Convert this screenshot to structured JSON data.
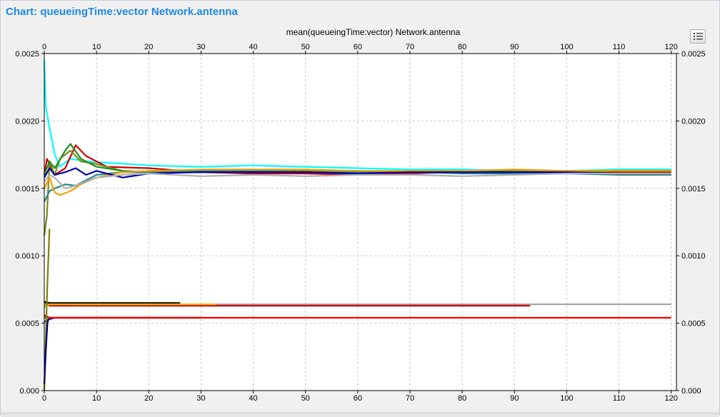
{
  "window": {
    "title": "Chart: queueingTime:vector Network.antenna"
  },
  "toolbar": {
    "legend_button_icon": "list-icon"
  },
  "colors": {
    "title_blue": "#1e88e5",
    "grid": "#c8c8c8",
    "plot_background": "#ffffff",
    "panel_background": "#f0f0f0"
  },
  "chart_data": {
    "type": "line",
    "title": "mean(queueingTime:vector) Network.antenna",
    "xlabel": "",
    "ylabel": "",
    "xlim": [
      0,
      121
    ],
    "ylim": [
      0,
      0.0025
    ],
    "x_ticks": [
      "0",
      "10",
      "20",
      "30",
      "40",
      "50",
      "60",
      "70",
      "80",
      "90",
      "100",
      "110",
      "120"
    ],
    "y_ticks": [
      "0.000",
      "0.0005",
      "0.0010",
      "0.0015",
      "0.0020",
      "0.0025"
    ],
    "x_axis_top": true,
    "y_axis_right": true,
    "grid": true,
    "legend": "none",
    "series": [
      {
        "color": "#00ffff",
        "x": [
          0,
          0.3,
          1,
          2,
          3,
          5,
          8,
          12,
          20,
          30,
          40,
          50,
          60,
          70,
          80,
          90,
          100,
          110,
          120
        ],
        "y": [
          0.00245,
          0.0021,
          0.00195,
          0.00175,
          0.00166,
          0.00172,
          0.0017,
          0.00169,
          0.00167,
          0.00166,
          0.00167,
          0.00166,
          0.00165,
          0.00164,
          0.00164,
          0.00163,
          0.00163,
          0.00164,
          0.00164
        ]
      },
      {
        "color": "#cc0000",
        "x": [
          0,
          0.5,
          1,
          2,
          4,
          6,
          8,
          12,
          20,
          30,
          40,
          50,
          60,
          70,
          80,
          90,
          100,
          110,
          120
        ],
        "y": [
          0.0016,
          0.00172,
          0.00168,
          0.0016,
          0.00165,
          0.00182,
          0.00174,
          0.00166,
          0.00165,
          0.00162,
          0.00161,
          0.00161,
          0.0016,
          0.00161,
          0.00162,
          0.00162,
          0.00162,
          0.00162,
          0.00162
        ]
      },
      {
        "color": "#7a8a1a",
        "x": [
          0,
          0.5,
          1,
          2,
          3,
          5,
          7,
          10,
          15,
          20,
          30,
          40,
          50,
          60,
          70,
          80,
          90,
          100,
          110,
          120
        ],
        "y": [
          0.00115,
          0.0013,
          0.0017,
          0.0016,
          0.00172,
          0.00178,
          0.0017,
          0.00168,
          0.00163,
          0.00162,
          0.00162,
          0.00163,
          0.00163,
          0.00163,
          0.00162,
          0.00162,
          0.00163,
          0.00163,
          0.00163,
          0.00163
        ]
      },
      {
        "color": "#1f8f1f",
        "x": [
          0,
          1,
          2,
          4,
          5,
          7,
          10,
          15,
          20,
          30,
          40,
          50,
          60,
          70,
          80,
          90,
          100,
          110,
          120
        ],
        "y": [
          0.0016,
          0.0017,
          0.00165,
          0.00178,
          0.00183,
          0.00172,
          0.00166,
          0.00163,
          0.00162,
          0.00162,
          0.00163,
          0.00162,
          0.00162,
          0.00163,
          0.00163,
          0.00162,
          0.00162,
          0.00163,
          0.00163
        ]
      },
      {
        "color": "#2a8a8a",
        "x": [
          0,
          1,
          2,
          4,
          6,
          8,
          10,
          15,
          20,
          30,
          40,
          50,
          60,
          70,
          80,
          90,
          100,
          110,
          120
        ],
        "y": [
          0.0014,
          0.00148,
          0.0015,
          0.00153,
          0.00152,
          0.00156,
          0.0016,
          0.00162,
          0.00162,
          0.00163,
          0.00163,
          0.00162,
          0.00162,
          0.00162,
          0.00161,
          0.00161,
          0.00161,
          0.0016,
          0.0016
        ]
      },
      {
        "color": "#f0a000",
        "x": [
          0,
          1,
          2,
          3,
          5,
          7,
          10,
          15,
          20,
          30,
          40,
          50,
          60,
          70,
          80,
          90,
          100,
          110,
          120
        ],
        "y": [
          0.0015,
          0.00158,
          0.00147,
          0.00145,
          0.00148,
          0.00153,
          0.00158,
          0.00162,
          0.00163,
          0.00164,
          0.00164,
          0.00164,
          0.00163,
          0.00163,
          0.00163,
          0.00164,
          0.00163,
          0.00163,
          0.00163
        ]
      },
      {
        "color": "#0000aa",
        "x": [
          0,
          1,
          2,
          4,
          6,
          8,
          10,
          15,
          20,
          30,
          40,
          50,
          60,
          70,
          80,
          90,
          100,
          110,
          120
        ],
        "y": [
          0.00158,
          0.00165,
          0.0016,
          0.00162,
          0.00165,
          0.0016,
          0.00163,
          0.00158,
          0.00161,
          0.00162,
          0.00162,
          0.00162,
          0.00161,
          0.00162,
          0.00162,
          0.00162,
          0.00162,
          0.00161,
          0.00161
        ]
      },
      {
        "color": "#b0b0b0",
        "x": [
          0,
          1,
          2,
          4,
          6,
          8,
          10,
          15,
          20,
          30,
          40,
          50,
          60,
          70,
          80,
          90,
          100,
          110,
          120
        ],
        "y": [
          0.00155,
          0.0016,
          0.00158,
          0.0015,
          0.00152,
          0.00155,
          0.00158,
          0.0016,
          0.00161,
          0.00159,
          0.0016,
          0.00159,
          0.0016,
          0.0016,
          0.00159,
          0.0016,
          0.00161,
          0.00161,
          0.00161
        ]
      },
      {
        "color": "#a0a0a0",
        "x": [
          0,
          0.5,
          1,
          3,
          5,
          10,
          20,
          30,
          40,
          60,
          80,
          100,
          120
        ],
        "y": [
          0.00062,
          0.00065,
          0.00064,
          0.00064,
          0.00064,
          0.00064,
          0.00064,
          0.00064,
          0.00064,
          0.00064,
          0.00064,
          0.00064,
          0.00064
        ]
      },
      {
        "color": "#cc0000",
        "x": [
          0,
          0.5,
          1,
          3,
          5,
          10,
          20,
          30,
          40,
          60,
          80,
          93
        ],
        "y": [
          0.00066,
          0.00064,
          0.00063,
          0.00063,
          0.00063,
          0.00063,
          0.00063,
          0.00063,
          0.00063,
          0.00063,
          0.00063,
          0.00063
        ]
      },
      {
        "color": "#1f8f1f",
        "x": [
          0,
          0.5,
          1,
          3,
          6,
          10,
          20,
          26
        ],
        "y": [
          0.00062,
          0.00065,
          0.00064,
          0.00065,
          0.00064,
          0.00064,
          0.00064,
          0.00064
        ]
      },
      {
        "color": "#000000",
        "x": [
          0,
          1,
          3,
          6,
          10,
          15,
          20,
          26
        ],
        "y": [
          0.00066,
          0.00065,
          0.00065,
          0.00065,
          0.00065,
          0.00065,
          0.00065,
          0.00065
        ]
      },
      {
        "color": "#f0c000",
        "x": [
          0,
          1,
          5,
          10,
          20,
          30,
          33
        ],
        "y": [
          0.00063,
          0.00064,
          0.00064,
          0.00064,
          0.00064,
          0.00064,
          0.00064
        ]
      },
      {
        "color": "#000080",
        "x": [
          0,
          0.5,
          1,
          2,
          5,
          10,
          20,
          30
        ],
        "y": [
          0.00051,
          0.00052,
          0.00053,
          0.00054,
          0.00054,
          0.00054,
          0.00054,
          0.00054
        ]
      },
      {
        "color": "#cc00cc",
        "x": [
          0,
          0.5,
          1,
          3,
          5,
          10,
          20
        ],
        "y": [
          0.00055,
          0.00054,
          0.00054,
          0.00054,
          0.00054,
          0.00054,
          0.00054
        ]
      },
      {
        "color": "#1f8f1f",
        "x": [
          0,
          1,
          3,
          10,
          20,
          30
        ],
        "y": [
          0.00054,
          0.00054,
          0.00054,
          0.00054,
          0.00054,
          0.00054
        ]
      },
      {
        "color": "#ff0000",
        "x": [
          0,
          0.5,
          1,
          3,
          5,
          10,
          20,
          40,
          60,
          80,
          100,
          120
        ],
        "y": [
          0.00056,
          0.00055,
          0.00054,
          0.00054,
          0.00054,
          0.00054,
          0.00054,
          0.00054,
          0.00054,
          0.00054,
          0.00054,
          0.00054
        ]
      },
      {
        "color": "#808000",
        "x": [
          0,
          0.3,
          0.6,
          1
        ],
        "y": [
          0.0,
          0.0004,
          0.0008,
          0.0012
        ]
      },
      {
        "color": "#000080",
        "x": [
          0,
          0.3,
          0.6,
          0.8
        ],
        "y": [
          5e-05,
          0.0003,
          0.0005,
          0.00053
        ]
      }
    ]
  }
}
